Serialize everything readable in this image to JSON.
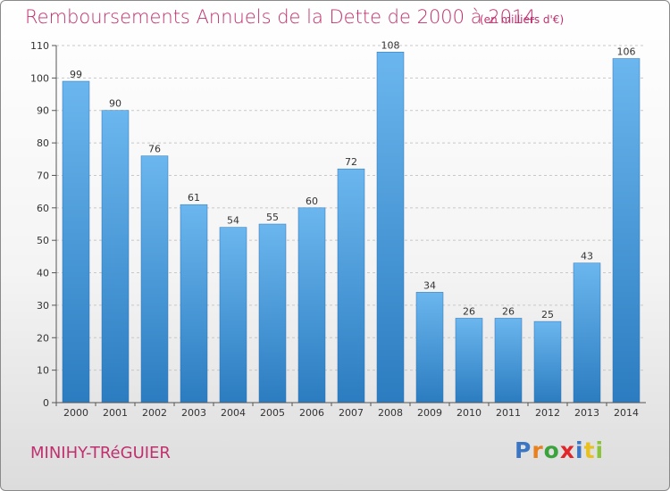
{
  "header": {
    "title": "Remboursements Annuels de la Dette de 2000 à 2014",
    "unit": "(en milliers d'€)"
  },
  "footer": {
    "commune": "MINIHY-TRéGUIER",
    "logo_letters": [
      "P",
      "r",
      "o",
      "x",
      "i",
      "t",
      "i"
    ],
    "logo_colors": [
      "#3a76c4",
      "#e8801f",
      "#3ba33b",
      "#e1262a",
      "#3a76c4",
      "#e8c01f",
      "#8ac43a"
    ]
  },
  "colors": {
    "bar_top": "#6bb6ee",
    "bar_bottom": "#2b7cc0",
    "accent": "#c0306e"
  },
  "chart_data": {
    "type": "bar",
    "title": "Remboursements Annuels de la Dette de 2000 à 2014",
    "categories": [
      "2000",
      "2001",
      "2002",
      "2003",
      "2004",
      "2005",
      "2006",
      "2007",
      "2008",
      "2009",
      "2010",
      "2011",
      "2012",
      "2013",
      "2014"
    ],
    "values": [
      99,
      90,
      76,
      61,
      54,
      55,
      60,
      72,
      108,
      34,
      26,
      26,
      25,
      43,
      106
    ],
    "ylim": [
      0,
      110
    ],
    "yticks": [
      0,
      10,
      20,
      30,
      40,
      50,
      60,
      70,
      80,
      90,
      100,
      110
    ],
    "grid": "y",
    "data_labels": true
  }
}
